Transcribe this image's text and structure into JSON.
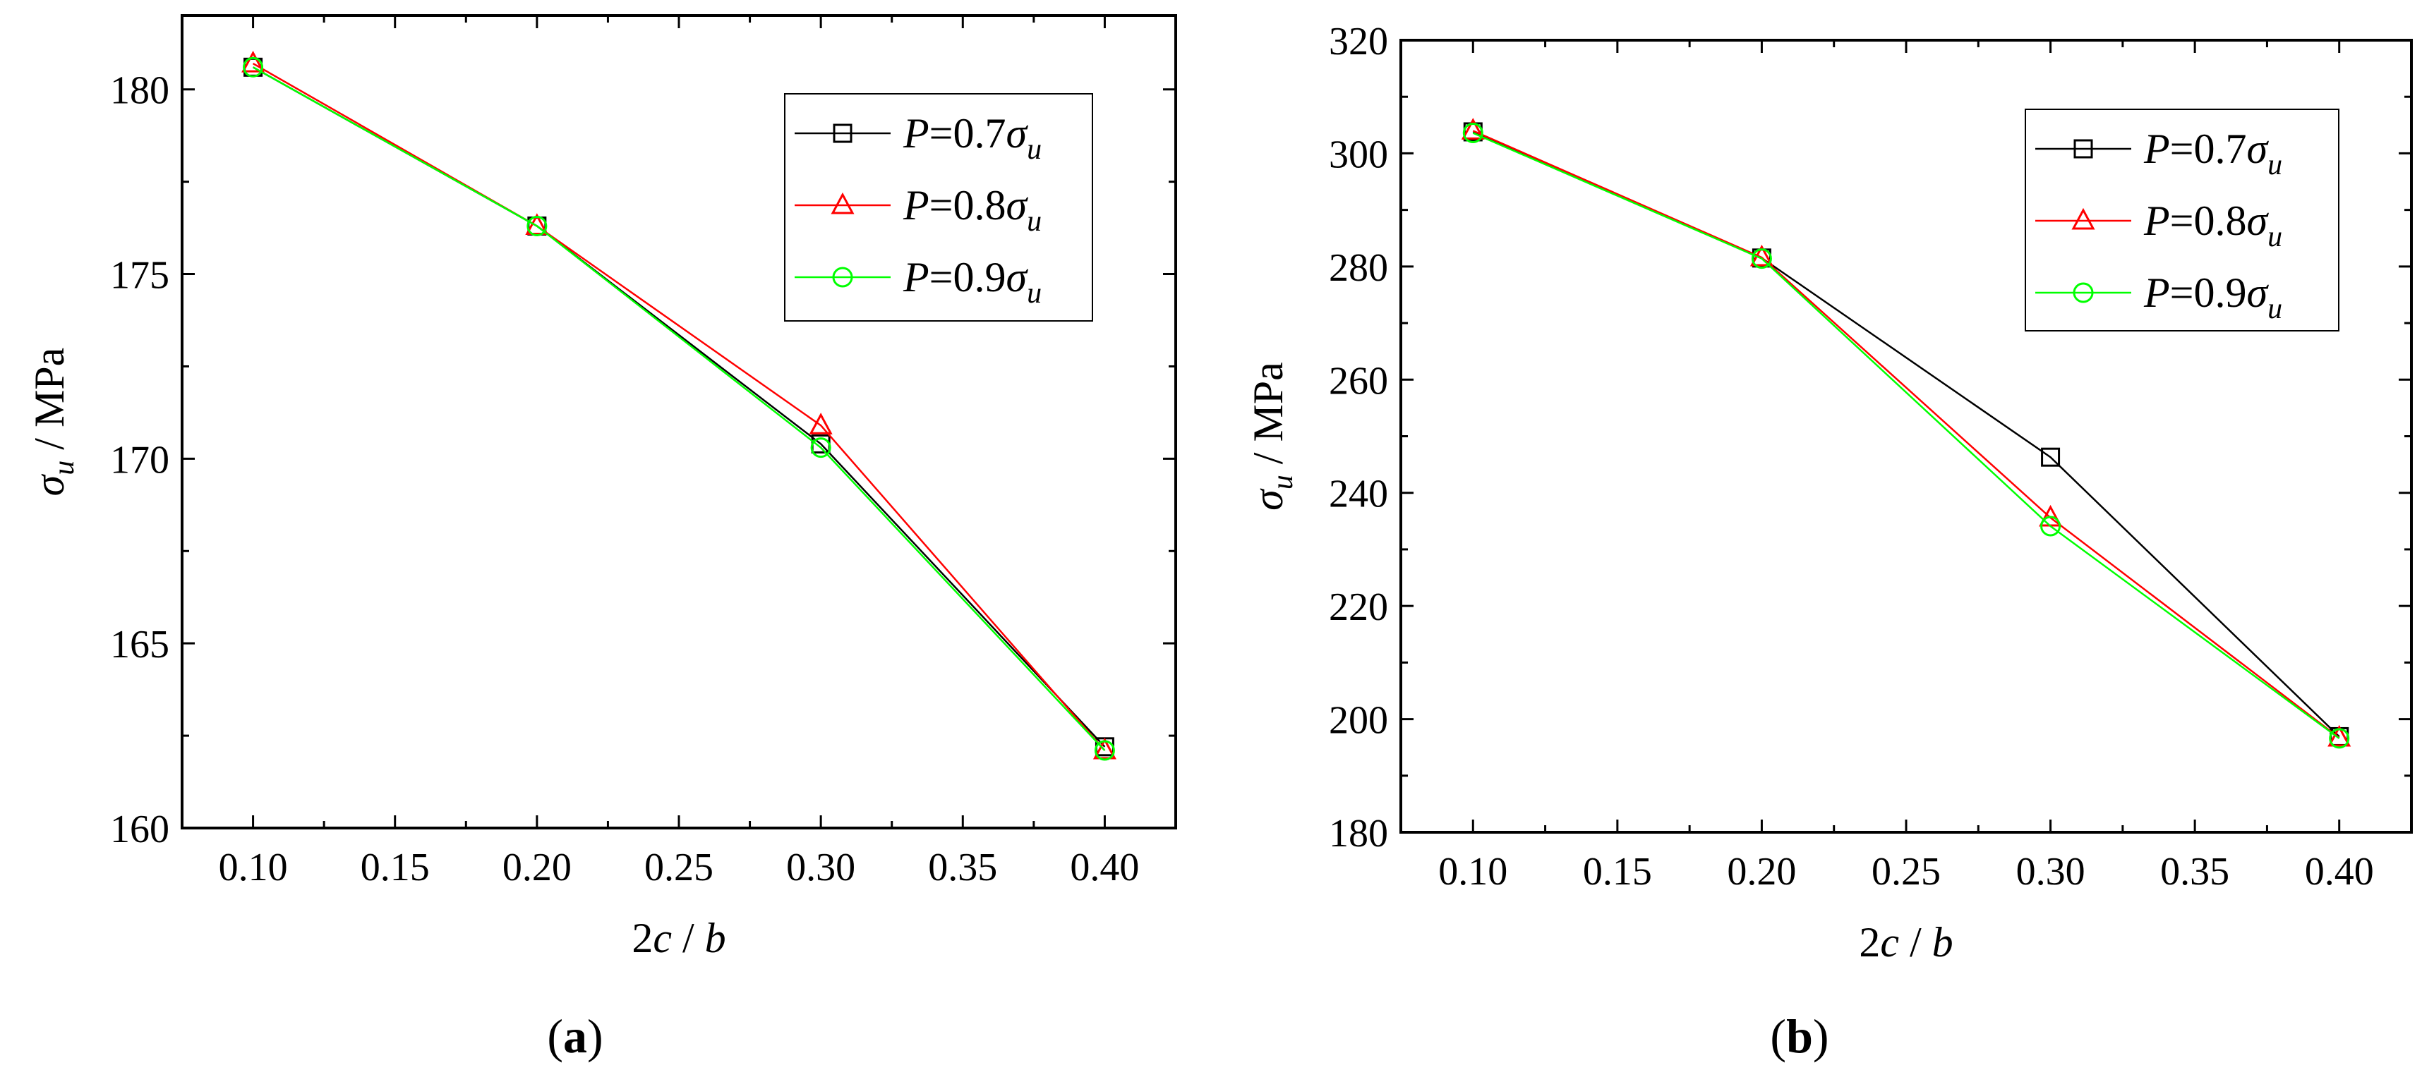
{
  "chart_data": [
    {
      "type": "line",
      "panel_label": "a",
      "x": [
        0.1,
        0.2,
        0.3,
        0.4
      ],
      "xticks": [
        "0.10",
        "0.15",
        "0.20",
        "0.25",
        "0.30",
        "0.35",
        "0.40"
      ],
      "xtick_values": [
        0.1,
        0.15,
        0.2,
        0.25,
        0.3,
        0.35,
        0.4
      ],
      "xlim": [
        0.075,
        0.425
      ],
      "yticks": [
        "160",
        "165",
        "170",
        "175",
        "180"
      ],
      "ytick_values": [
        160,
        165,
        170,
        175,
        180
      ],
      "ylim": [
        160,
        182
      ],
      "xlabel": "2c / b",
      "ylabel": "σu / MPa",
      "legend_position": "top-right",
      "series": [
        {
          "name": "P=0.7σu",
          "legend": {
            "var": "P",
            "mid": "=0.7",
            "greek": "σ",
            "sub": "u"
          },
          "marker": "square",
          "color": "#000000",
          "values": [
            180.6,
            176.3,
            170.4,
            162.2
          ]
        },
        {
          "name": "P=0.8σu",
          "legend": {
            "var": "P",
            "mid": "=0.8",
            "greek": "σ",
            "sub": "u"
          },
          "marker": "triangle",
          "color": "#ff0000",
          "values": [
            180.7,
            176.3,
            170.9,
            162.1
          ]
        },
        {
          "name": "P=0.9σu",
          "legend": {
            "var": "P",
            "mid": "=0.9",
            "greek": "σ",
            "sub": "u"
          },
          "marker": "circle",
          "color": "#00ff00",
          "values": [
            180.6,
            176.3,
            170.3,
            162.1
          ]
        }
      ]
    },
    {
      "type": "line",
      "panel_label": "b",
      "x": [
        0.1,
        0.2,
        0.3,
        0.4
      ],
      "xticks": [
        "0.10",
        "0.15",
        "0.20",
        "0.25",
        "0.30",
        "0.35",
        "0.40"
      ],
      "xtick_values": [
        0.1,
        0.15,
        0.2,
        0.25,
        0.3,
        0.35,
        0.4
      ],
      "xlim": [
        0.075,
        0.425
      ],
      "yticks": [
        "180",
        "200",
        "220",
        "240",
        "260",
        "280",
        "300",
        "320"
      ],
      "ytick_values": [
        180,
        200,
        220,
        240,
        260,
        280,
        300,
        320
      ],
      "ylim": [
        180,
        320
      ],
      "xlabel": "2c / b",
      "ylabel": "σu / MPa",
      "legend_position": "top-right",
      "series": [
        {
          "name": "P=0.7σu",
          "legend": {
            "var": "P",
            "mid": "=0.7",
            "greek": "σ",
            "sub": "u"
          },
          "marker": "square",
          "color": "#000000",
          "values": [
            303.8,
            281.5,
            246.3,
            196.9
          ]
        },
        {
          "name": "P=0.8σu",
          "legend": {
            "var": "P",
            "mid": "=0.8",
            "greek": "σ",
            "sub": "u"
          },
          "marker": "triangle",
          "color": "#ff0000",
          "values": [
            304.0,
            281.6,
            235.6,
            196.7
          ]
        },
        {
          "name": "P=0.9σu",
          "legend": {
            "var": "P",
            "mid": "=0.9",
            "greek": "σ",
            "sub": "u"
          },
          "marker": "circle",
          "color": "#00ff00",
          "values": [
            303.6,
            281.4,
            234.1,
            196.6
          ]
        }
      ]
    }
  ]
}
